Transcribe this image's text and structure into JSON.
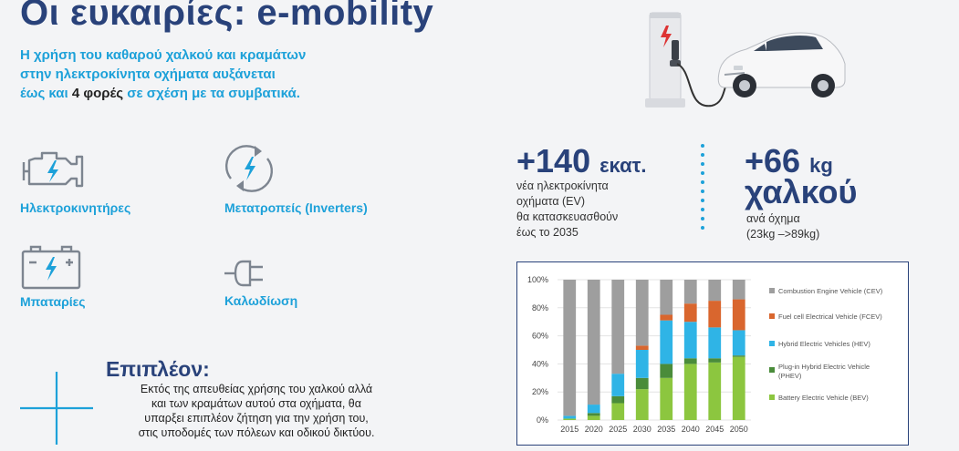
{
  "title": "Οι ευκαιρίες: e-mobility",
  "intro": {
    "line1": "Η χρήση του καθαρού χαλκού και κραμάτων",
    "line2": "στην ηλεκτροκίνητα οχήματα αυξάνεται",
    "line3_pre": "έως και ",
    "line3_strong": "4 φορές",
    "line3_post": " σε σχέση με τα συμβατικά."
  },
  "applications": [
    {
      "label": "Ηλεκτροκινητήρες",
      "icon": "engine-icon"
    },
    {
      "label": "Μετατροπείς (Inverters)",
      "icon": "inverter-icon"
    },
    {
      "label": "Μπαταρίες",
      "icon": "battery-icon"
    },
    {
      "label": "Καλωδίωση",
      "icon": "plug-icon"
    }
  ],
  "stat_ev": {
    "number": "+140",
    "unit": "εκατ.",
    "line1": "νέα ηλεκτροκίνητα",
    "line2": "οχήματα (EV)",
    "line3": "θα κατασκευασθούν",
    "line4": "έως το 2035"
  },
  "stat_copper": {
    "number": "+66",
    "unit": "kg",
    "word": "χαλκού",
    "line1": "ανά όχημα",
    "line2": "(23kg –>89kg)"
  },
  "extra": {
    "title": "Επιπλέον:",
    "line1": "Εκτός της απευθείας χρήσης του χαλκού αλλά",
    "line2": "και των κραμάτων αυτού στα οχήματα, θα",
    "line3": "υπαρξει επιπλέον ζήτηση για την χρήση του,",
    "line4": "στις υποδομές των πόλεων και οδικού δικτύου."
  },
  "colors": {
    "navy": "#29427a",
    "cyan": "#1da1d9",
    "cev": "#9e9e9e",
    "fcev": "#d9662e",
    "hev": "#2fb4e6",
    "phev": "#4a8c3a",
    "bev": "#8cc63f"
  },
  "chart_data": {
    "type": "bar",
    "stacked": true,
    "categories": [
      "2015",
      "2020",
      "2025",
      "2030",
      "2035",
      "2040",
      "2045",
      "2050"
    ],
    "yticks": [
      "0%",
      "20%",
      "40%",
      "60%",
      "80%",
      "100%"
    ],
    "ylim": [
      0,
      100
    ],
    "legend_position": "right",
    "series": [
      {
        "name": "Battery Electric Vehicle (BEV)",
        "color": "#8cc63f",
        "values": [
          1,
          3,
          12,
          22,
          30,
          40,
          41,
          45
        ]
      },
      {
        "name": "Plug-in Hybrid Electric Vehicle (PHEV)",
        "color": "#4a8c3a",
        "values": [
          0,
          2,
          5,
          8,
          10,
          4,
          3,
          1
        ]
      },
      {
        "name": "Hybrid Electric Vehicles (HEV)",
        "color": "#2fb4e6",
        "values": [
          2,
          6,
          16,
          20,
          31,
          26,
          22,
          18
        ]
      },
      {
        "name": "Fuel cell Electrical Vehicle (FCEV)",
        "color": "#d9662e",
        "values": [
          0,
          0,
          0,
          3,
          4,
          13,
          19,
          22
        ]
      },
      {
        "name": "Combustion Engine Vehicle (CEV)",
        "color": "#9e9e9e",
        "values": [
          97,
          89,
          67,
          47,
          25,
          17,
          15,
          14
        ]
      }
    ],
    "legend_order": [
      "Combustion Engine Vehicle (CEV)",
      "Fuel cell Electrical Vehicle (FCEV)",
      "Hybrid Electric Vehicles (HEV)",
      "Plug-in Hybrid Electric Vehicle (PHEV)",
      "Battery Electric Vehicle (BEV)"
    ]
  }
}
